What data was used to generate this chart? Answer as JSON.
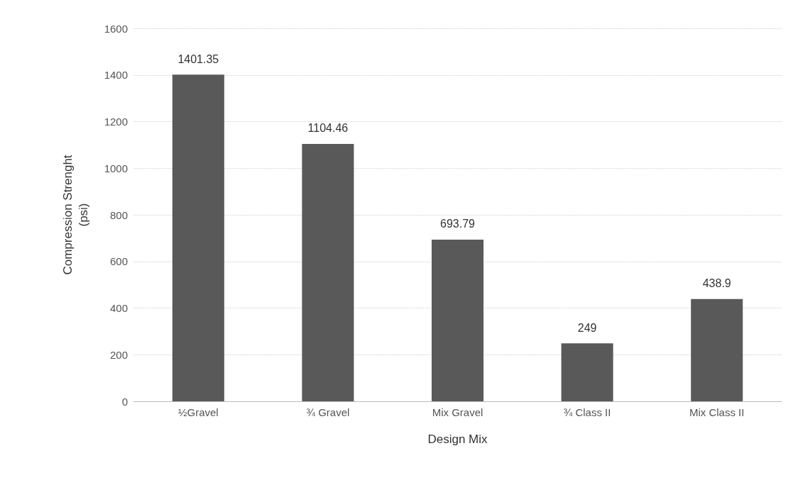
{
  "chart_data": {
    "type": "bar",
    "xlabel": "Design Mix",
    "ylabel": "Compression Strenght\n(psi)",
    "categories": [
      "½Gravel",
      "¾ Gravel",
      "Mix Gravel",
      "¾ Class II",
      "Mix Class II"
    ],
    "values": [
      1401.35,
      1104.46,
      693.79,
      249,
      438.9
    ],
    "color": "#595959",
    "ylim": [
      0,
      1600
    ],
    "yticks": [
      0,
      200,
      400,
      600,
      800,
      1000,
      1200,
      1400,
      1600
    ],
    "grid": "y",
    "data_labels": true
  }
}
